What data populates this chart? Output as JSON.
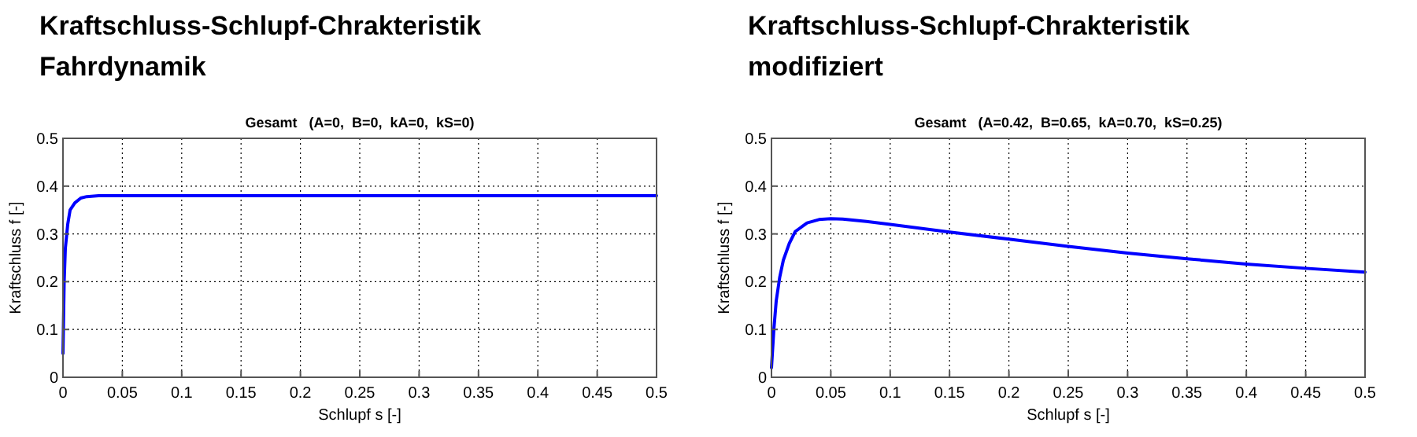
{
  "chart_data": [
    {
      "type": "line",
      "title": "Kraftschluss-Schlupf-Chrakteristik\nFahrdynamik",
      "subtitle": "Gesamt   (A=0,  B=0,  kA=0,  kS=0)",
      "xlabel": "Schlupf s [-]",
      "ylabel": "Kraftschluss f [-]",
      "x": [
        0,
        0.001,
        0.002,
        0.004,
        0.006,
        0.01,
        0.015,
        0.02,
        0.03,
        0.5
      ],
      "series": [
        {
          "color": "#0000ff",
          "values": [
            0.05,
            0.2,
            0.27,
            0.32,
            0.35,
            0.365,
            0.375,
            0.378,
            0.38,
            0.38
          ]
        }
      ],
      "xlim": [
        0,
        0.5
      ],
      "ylim": [
        0,
        0.5
      ],
      "xticks": [
        0,
        0.05,
        0.1,
        0.15,
        0.2,
        0.25,
        0.3,
        0.35,
        0.4,
        0.45,
        0.5
      ],
      "yticks": [
        0,
        0.1,
        0.2,
        0.3,
        0.4,
        0.5
      ],
      "grid": true,
      "marker": "none",
      "line_style": "solid"
    },
    {
      "type": "line",
      "title": "Kraftschluss-Schlupf-Chrakteristik\nmodifiziert",
      "subtitle": "Gesamt   (A=0.42,  B=0.65,  kA=0.70,  kS=0.25)",
      "xlabel": "Schlupf s [-]",
      "ylabel": "Kraftschluss f [-]",
      "x": [
        0,
        0.002,
        0.004,
        0.007,
        0.01,
        0.015,
        0.02,
        0.03,
        0.04,
        0.05,
        0.06,
        0.08,
        0.1,
        0.15,
        0.2,
        0.25,
        0.3,
        0.35,
        0.4,
        0.45,
        0.5
      ],
      "series": [
        {
          "color": "#0000ff",
          "values": [
            0.02,
            0.1,
            0.16,
            0.21,
            0.245,
            0.28,
            0.305,
            0.323,
            0.33,
            0.332,
            0.331,
            0.326,
            0.32,
            0.304,
            0.289,
            0.274,
            0.26,
            0.248,
            0.237,
            0.228,
            0.22
          ]
        }
      ],
      "xlim": [
        0,
        0.5
      ],
      "ylim": [
        0,
        0.5
      ],
      "xticks": [
        0,
        0.05,
        0.1,
        0.15,
        0.2,
        0.25,
        0.3,
        0.35,
        0.4,
        0.45,
        0.5
      ],
      "yticks": [
        0,
        0.1,
        0.2,
        0.3,
        0.4,
        0.5
      ],
      "grid": true,
      "marker": "none",
      "line_style": "solid"
    }
  ]
}
